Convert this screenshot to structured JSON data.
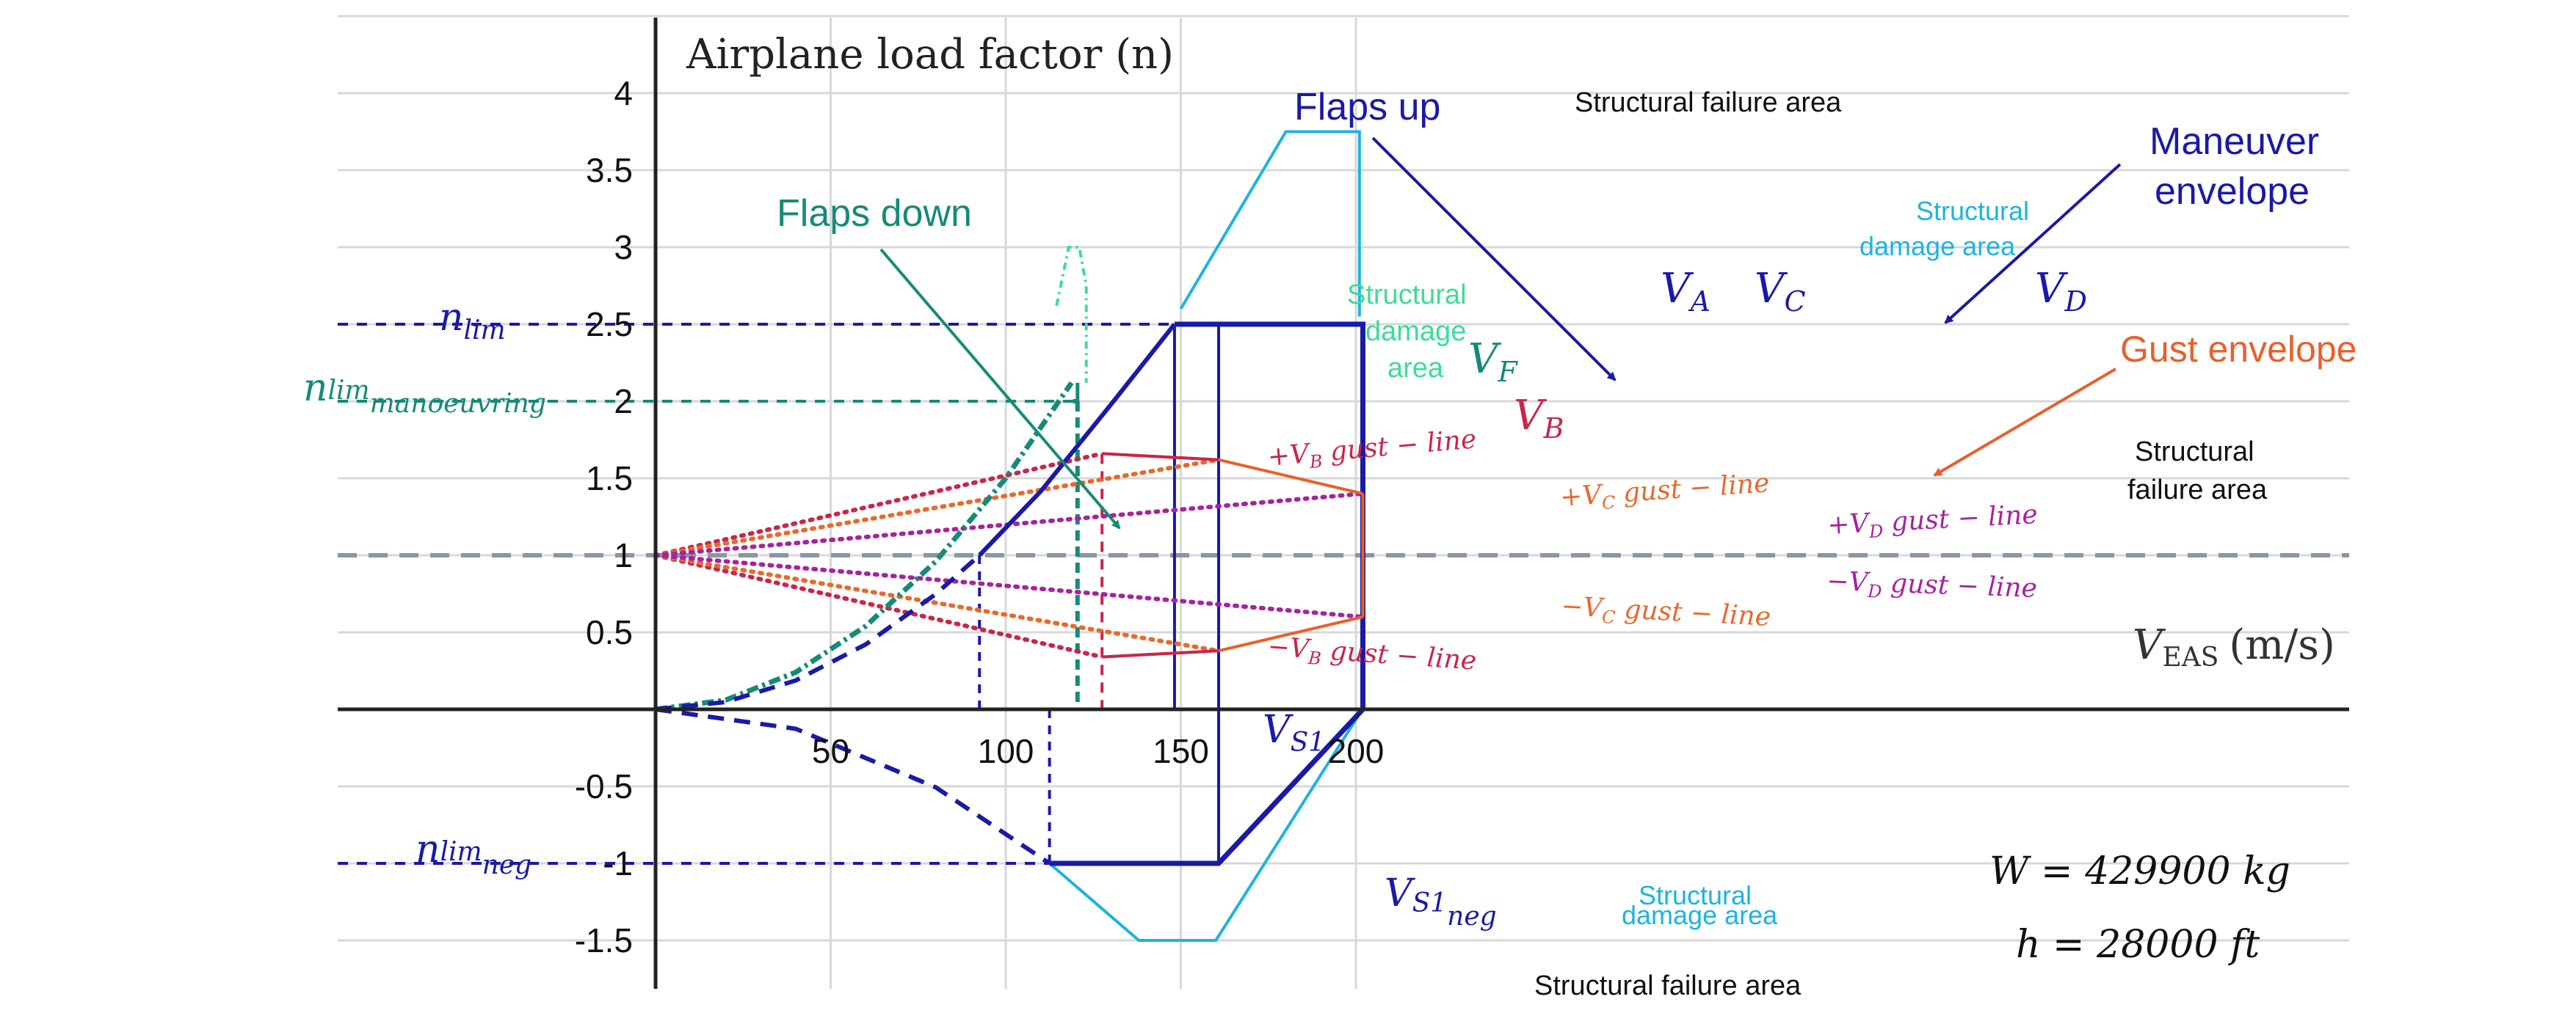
{
  "chart_data": {
    "type": "line",
    "ylabel": "Airplane load factor (n)",
    "xlabel": "V_EAS (m/s)",
    "xlabel_main": "V",
    "xlabel_sub": "EAS",
    "xlabel_unit": "(m/s)",
    "xlim": [
      -45,
      240
    ],
    "ylim": [
      -1.8,
      4.5
    ],
    "x_ticks": [
      50,
      100,
      150,
      200
    ],
    "y_ticks": [
      -1.5,
      -1,
      -0.5,
      0.5,
      1,
      1.5,
      2,
      2.5,
      3,
      3.5,
      4
    ],
    "x_tick_labels": [
      "50",
      "100",
      "150",
      "200"
    ],
    "y_tick_labels": [
      "-1.5",
      "-1",
      "-0.5",
      "0.5",
      "1",
      "1.5",
      "2",
      "2.5",
      "3",
      "3.5",
      "4"
    ],
    "grid": true,
    "colors": {
      "maneuver": "#1a1aa6",
      "flaps": "#178a78",
      "flaps_light": "#3ddc97",
      "gust_B": "#c8264a",
      "gust_C": "#e8692d",
      "gust_D": "#a6239e",
      "gust_envelope": "#e8602c",
      "damage": "#1cb4e0",
      "one_g": "#8a96a8",
      "grid": "#d8d8d8"
    },
    "series": [
      {
        "name": "Flaps up",
        "dashed_x": [
          0,
          20,
          40,
          60,
          80,
          92.5
        ],
        "dashed_y": [
          0,
          0.047,
          0.187,
          0.421,
          0.748,
          1.0
        ],
        "solid_x": [
          92.5,
          110,
          130,
          148.2
        ],
        "solid_y": [
          1.0,
          1.415,
          1.977,
          2.5
        ]
      },
      {
        "name": "Flaps down",
        "x": [
          0,
          20,
          40,
          60,
          80,
          100,
          118.8
        ],
        "y": [
          0,
          0.06,
          0.24,
          0.54,
          0.96,
          1.5,
          2.12
        ]
      },
      {
        "name": "Maneuver envelope",
        "x": [
          148.2,
          160.8,
          189,
          202,
          202
        ],
        "y": [
          2.5,
          2.5,
          2.5,
          2.5,
          0
        ]
      },
      {
        "name": "Negative envelope",
        "dashed_x": [
          0,
          40,
          80,
          112.5
        ],
        "dashed_y": [
          0,
          -0.126,
          -0.506,
          -1.0
        ],
        "solid_x": [
          112.5,
          160.8,
          202
        ],
        "solid_y": [
          -1.0,
          -1.0,
          0
        ]
      },
      {
        "name": "Gust envelope",
        "upper_x": [
          127.5,
          160.8,
          202
        ],
        "upper_y": [
          1.66,
          1.62,
          1.4
        ],
        "lower_x": [
          127.5,
          160.8,
          202
        ],
        "lower_y": [
          0.34,
          0.38,
          0.6
        ]
      },
      {
        "name": "+V_B gust − line",
        "x": [
          0,
          127.5
        ],
        "y": [
          1,
          1.66
        ]
      },
      {
        "name": "−V_B gust − line",
        "x": [
          0,
          127.5
        ],
        "y": [
          1,
          0.34
        ]
      },
      {
        "name": "+V_C gust − line",
        "x": [
          0,
          160.8
        ],
        "y": [
          1,
          1.62
        ]
      },
      {
        "name": "−V_C gust − line",
        "x": [
          0,
          160.8
        ],
        "y": [
          1,
          0.38
        ]
      },
      {
        "name": "+V_D gust − line",
        "x": [
          0,
          202
        ],
        "y": [
          1,
          1.4
        ]
      },
      {
        "name": "−V_D gust − line",
        "x": [
          0,
          202
        ],
        "y": [
          1,
          0.6
        ]
      },
      {
        "name": "Structural damage area (flaps)",
        "x": [
          114.5,
          118,
          121,
          123,
          123
        ],
        "y": [
          2.62,
          3.0,
          3.0,
          2.75,
          2.12
        ]
      },
      {
        "name": "Structural damage area (upper)",
        "x": [
          150,
          180,
          201,
          201
        ],
        "y": [
          2.6,
          3.75,
          3.75,
          2.55
        ]
      },
      {
        "name": "Structural damage area (lower)",
        "x": [
          112.5,
          138,
          160,
          201
        ],
        "y": [
          -1.0,
          -1.5,
          -1.5,
          -0.03
        ]
      }
    ],
    "reference_lines": {
      "n_lim": 2.5,
      "n_lim_manoeuvring": 2.0,
      "n_lim_neg": -1.0,
      "one_g": 1.0
    },
    "speeds": {
      "V_S1": 92.5,
      "V_S1neg": 112.5,
      "V_F": 120.5,
      "V_B": 127.5,
      "V_A": 148.2,
      "V_C": 160.8,
      "V_D": 202
    },
    "annotations": {
      "flaps_up": "Flaps up",
      "flaps_down": "Flaps down",
      "maneuver_envelope_1": "Maneuver",
      "maneuver_envelope_2": "envelope",
      "gust_envelope": "Gust envelope",
      "failure_top": "Structural failure area",
      "failure_right_1": "Structural",
      "failure_right_2": "failure area",
      "failure_bottom": "Structural failure area",
      "damage_upper_1": "Structural",
      "damage_upper_2": "damage area",
      "damage_flaps_1": "Structural",
      "damage_flaps_2": "damage",
      "damage_flaps_3": "area",
      "damage_lower_1": "Structural",
      "damage_lower_2": "damage area",
      "gust_pVB": "+V",
      "gust_pVB_sub": "B",
      "gust_pVB_tail": " gust − line",
      "gust_pVC": "+V",
      "gust_pVC_sub": "C",
      "gust_pVC_tail": " gust − line",
      "gust_pVD": "+V",
      "gust_pVD_sub": "D",
      "gust_pVD_tail": " gust − line",
      "gust_mVB": "−V",
      "gust_mVB_sub": "B",
      "gust_mVB_tail": " gust − line",
      "gust_mVC": "−V",
      "gust_mVC_sub": "C",
      "gust_mVC_tail": " gust − line",
      "gust_mVD": "−V",
      "gust_mVD_sub": "D",
      "gust_mVD_tail": " gust − line",
      "n_lim": "n",
      "n_lim_sub": "lim",
      "n_lim_manoeuvring": "n",
      "n_lim_manoeuvring_sub1": "lim",
      "n_lim_manoeuvring_sub2": "manoeuvring",
      "n_lim_neg": "n",
      "n_lim_neg_sub1": "lim",
      "n_lim_neg_sub2": "neg",
      "V_A": "V",
      "V_A_sub": "A",
      "V_C": "V",
      "V_C_sub": "C",
      "V_D": "V",
      "V_D_sub": "D",
      "V_F": "V",
      "V_F_sub": "F",
      "V_B": "V",
      "V_B_sub": "B",
      "V_S1": "V",
      "V_S1_sub": "S1",
      "V_S1neg": "V",
      "V_S1neg_sub1": "S1",
      "V_S1neg_sub2": "neg",
      "weight": "W = 429900 kg",
      "altitude": "h = 28000 ft"
    }
  }
}
